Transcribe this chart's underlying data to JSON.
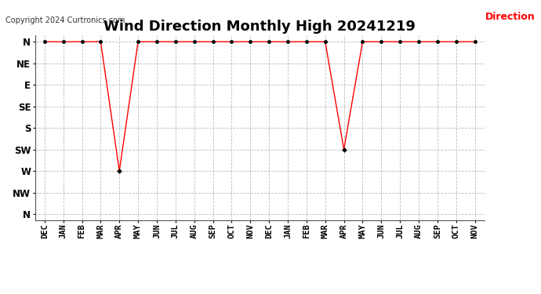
{
  "title": "Wind Direction Monthly High 20241219",
  "copyright": "Copyright 2024 Curtronics.com",
  "legend_label": "Direction",
  "legend_color": "#ff0000",
  "x_labels": [
    "DEC",
    "JAN",
    "FEB",
    "MAR",
    "APR",
    "MAY",
    "JUN",
    "JUL",
    "AUG",
    "SEP",
    "OCT",
    "NOV",
    "DEC",
    "JAN",
    "FEB",
    "MAR",
    "APR",
    "MAY",
    "JUN",
    "JUL",
    "AUG",
    "SEP",
    "OCT",
    "NOV"
  ],
  "y_labels": [
    "N",
    "NW",
    "W",
    "SW",
    "S",
    "SE",
    "E",
    "NE",
    "N"
  ],
  "y_values": [
    8,
    7,
    6,
    5,
    4,
    3,
    2,
    1,
    0
  ],
  "line_color": "#ff0000",
  "marker_color": "#000000",
  "grid_color": "#bbbbbb",
  "bg_color": "#ffffff",
  "values": [
    0,
    0,
    0,
    0,
    6,
    0,
    0,
    0,
    0,
    0,
    0,
    0,
    0,
    0,
    0,
    0,
    5,
    0,
    0,
    0,
    0,
    0,
    0,
    0
  ],
  "n_points": 24,
  "title_fontsize": 13,
  "tick_fontsize": 7.5,
  "copyright_fontsize": 7
}
